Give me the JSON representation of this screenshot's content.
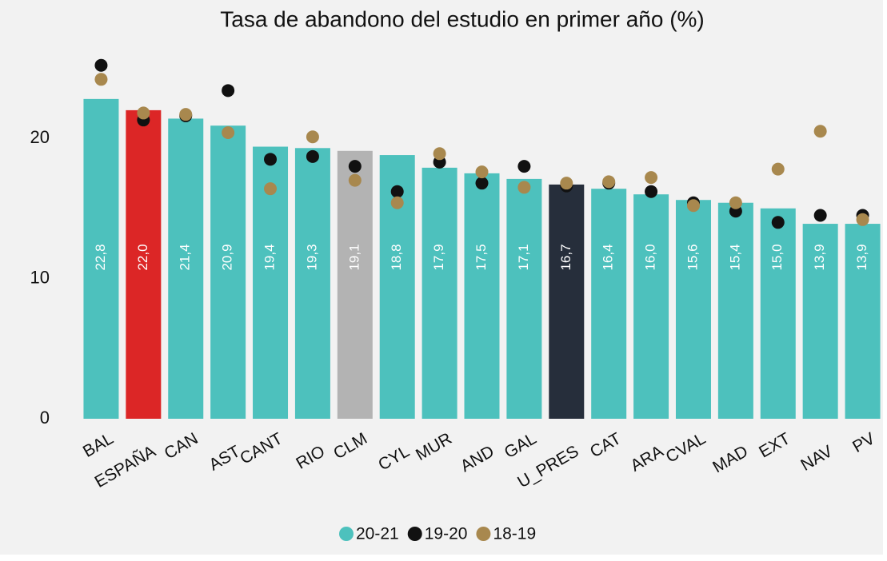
{
  "chart_data": {
    "type": "bar",
    "title": "Tasa de abandono del estudio en primer año (%)",
    "categories": [
      "BAL",
      "ESPAÑA",
      "CAN",
      "AST",
      "CANT",
      "RIO",
      "CLM",
      "CYL",
      "MUR",
      "AND",
      "GAL",
      "U_PRES",
      "CAT",
      "ARA",
      "CVAL",
      "MAD",
      "EXT",
      "NAV",
      "PV"
    ],
    "series": [
      {
        "name": "20-21",
        "color": "#4dc1bd",
        "colors": [
          "#4dc1bd",
          "#dc2626",
          "#4dc1bd",
          "#4dc1bd",
          "#4dc1bd",
          "#4dc1bd",
          "#b3b3b3",
          "#4dc1bd",
          "#4dc1bd",
          "#4dc1bd",
          "#4dc1bd",
          "#262e3b",
          "#4dc1bd",
          "#4dc1bd",
          "#4dc1bd",
          "#4dc1bd",
          "#4dc1bd",
          "#4dc1bd",
          "#4dc1bd"
        ],
        "values": [
          22.8,
          22.0,
          21.4,
          20.9,
          19.4,
          19.3,
          19.1,
          18.8,
          17.9,
          17.5,
          17.1,
          16.7,
          16.4,
          16.0,
          15.6,
          15.4,
          15.0,
          13.9,
          13.9
        ],
        "value_labels": [
          "22,8",
          "22,0",
          "21,4",
          "20,9",
          "19,4",
          "19,3",
          "19,1",
          "18,8",
          "17,9",
          "17,5",
          "17,1",
          "16,7",
          "16,4",
          "16,0",
          "15,6",
          "15,4",
          "15,0",
          "13,9",
          "13,9"
        ]
      },
      {
        "name": "19-20",
        "color": "#111111",
        "values": [
          25.2,
          21.3,
          21.6,
          23.4,
          18.5,
          18.7,
          18.0,
          16.2,
          18.3,
          16.8,
          18.0,
          16.6,
          16.8,
          16.2,
          15.4,
          14.8,
          14.0,
          14.5,
          14.5
        ]
      },
      {
        "name": "18-19",
        "color": "#a8884e",
        "values": [
          24.2,
          21.8,
          21.7,
          20.4,
          16.4,
          20.1,
          17.0,
          15.4,
          18.9,
          17.6,
          16.5,
          16.8,
          16.9,
          17.2,
          15.2,
          15.4,
          17.8,
          20.5,
          14.2
        ]
      }
    ],
    "ylim": [
      0,
      26
    ],
    "yticks": [
      0,
      10,
      20
    ],
    "grid": false
  }
}
